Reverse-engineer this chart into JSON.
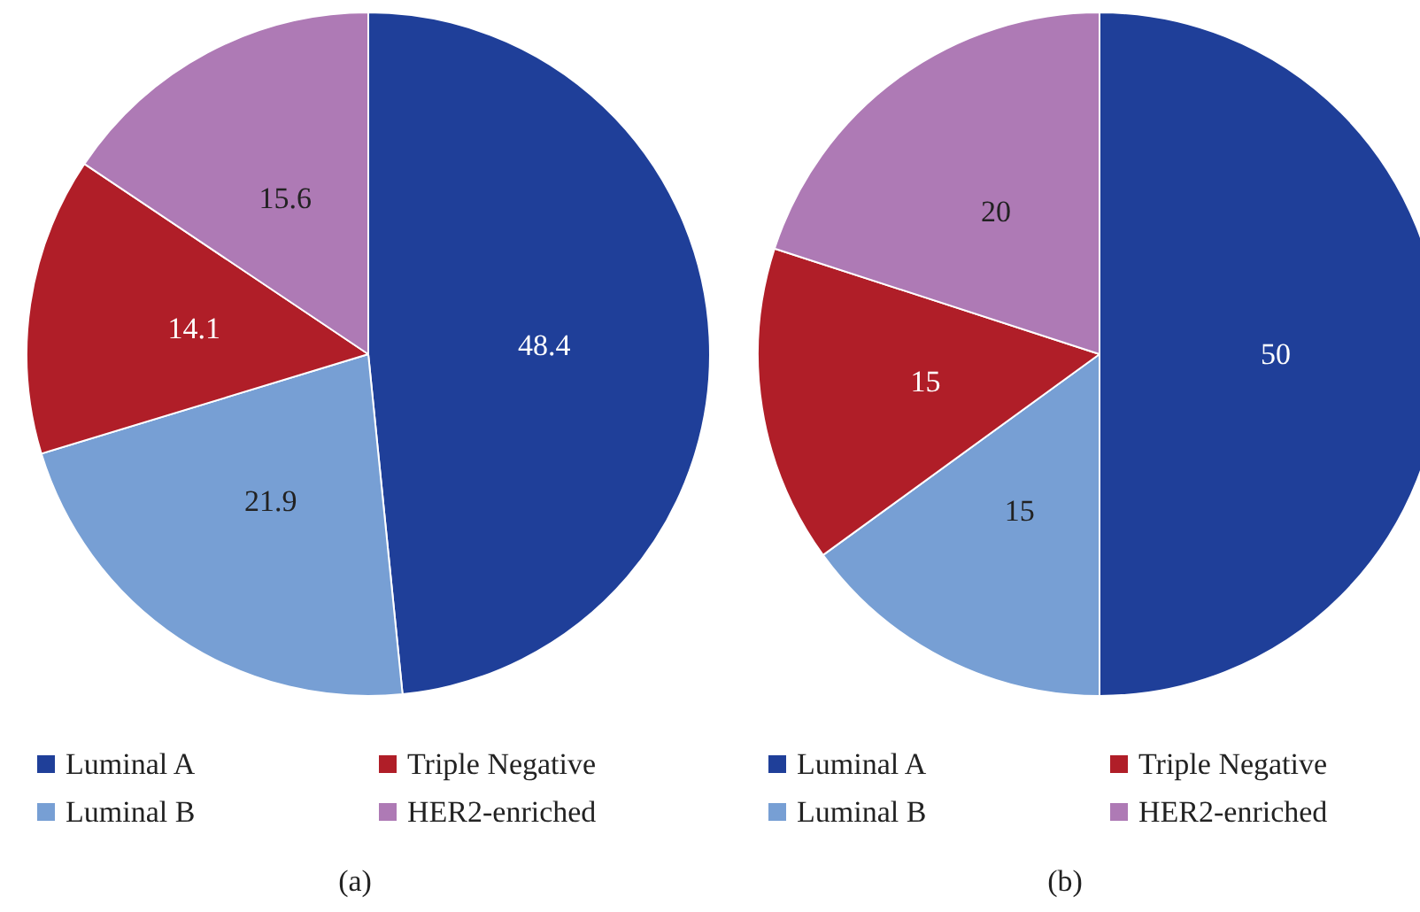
{
  "chart_data": [
    {
      "type": "pie",
      "categories": [
        "Luminal A",
        "Luminal B",
        "Triple Negative",
        "HER2-enriched"
      ],
      "values": [
        48.4,
        21.9,
        14.1,
        15.6
      ],
      "colors": [
        "#1f3f99",
        "#779fd4",
        "#b01e28",
        "#ae7ab5"
      ],
      "data_labels": true,
      "legend": "bottom",
      "annotations": [
        "(a)"
      ]
    },
    {
      "type": "pie",
      "categories": [
        "Luminal A",
        "Luminal B",
        "Triple Negative",
        "HER2-enriched"
      ],
      "values": [
        50,
        15,
        15,
        20
      ],
      "colors": [
        "#1f3f99",
        "#779fd4",
        "#b01e28",
        "#ae7ab5"
      ],
      "data_labels": true,
      "legend": "bottom",
      "annotations": [
        "(b)"
      ]
    }
  ]
}
